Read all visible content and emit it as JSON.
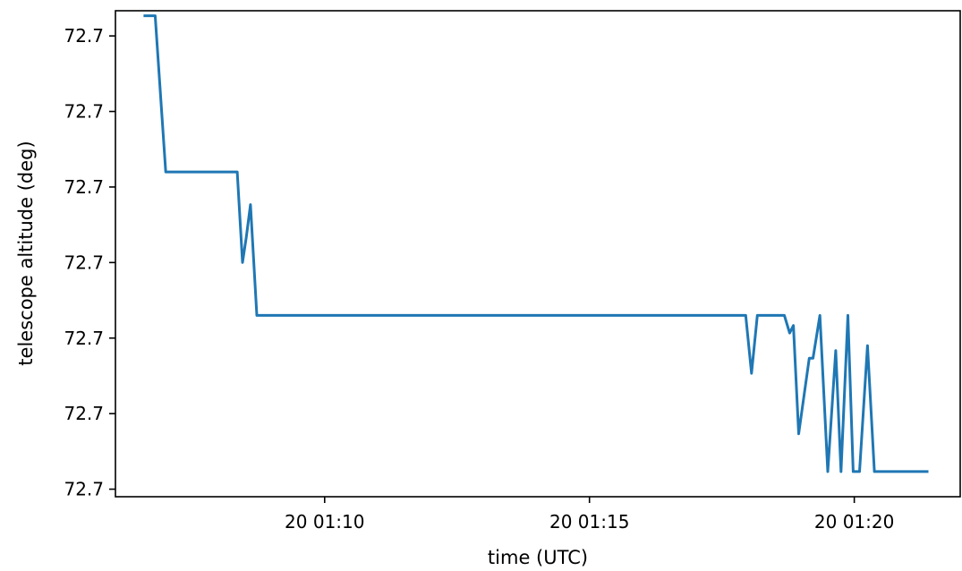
{
  "chart_data": {
    "type": "line",
    "title": "",
    "xlabel": "time (UTC)",
    "ylabel": "telescope altitude (deg)",
    "x_unit": "minutes (UTC)",
    "xlim": [
      6.05,
      22.0
    ],
    "ylim": [
      -0.15,
      9.5
    ],
    "x_ticks": [
      {
        "value": 10,
        "label": "20 01:10"
      },
      {
        "value": 15,
        "label": "20 01:15"
      },
      {
        "value": 20,
        "label": "20 01:20"
      }
    ],
    "y_ticks": [
      {
        "value": 0,
        "label": "72.7"
      },
      {
        "value": 1.5,
        "label": "72.7"
      },
      {
        "value": 3,
        "label": "72.7"
      },
      {
        "value": 4.5,
        "label": "72.7"
      },
      {
        "value": 6,
        "label": "72.7"
      },
      {
        "value": 7.5,
        "label": "72.7"
      },
      {
        "value": 9,
        "label": "72.7"
      }
    ],
    "grid": false,
    "series": [
      {
        "color": "#1f77b4",
        "points": [
          [
            6.58,
            9.4
          ],
          [
            6.8,
            9.4
          ],
          [
            7.0,
            6.3
          ],
          [
            8.35,
            6.3
          ],
          [
            8.45,
            4.5
          ],
          [
            8.52,
            5.0
          ],
          [
            8.6,
            5.65
          ],
          [
            8.72,
            3.45
          ],
          [
            15.0,
            3.45
          ],
          [
            17.95,
            3.45
          ],
          [
            18.06,
            2.3
          ],
          [
            18.17,
            3.45
          ],
          [
            18.68,
            3.45
          ],
          [
            18.78,
            3.1
          ],
          [
            18.85,
            3.25
          ],
          [
            18.95,
            1.1
          ],
          [
            19.15,
            2.6
          ],
          [
            19.22,
            2.6
          ],
          [
            19.35,
            3.45
          ],
          [
            19.5,
            0.35
          ],
          [
            19.65,
            2.75
          ],
          [
            19.75,
            0.35
          ],
          [
            19.88,
            3.45
          ],
          [
            19.98,
            0.35
          ],
          [
            20.1,
            0.35
          ],
          [
            20.25,
            2.85
          ],
          [
            20.38,
            0.35
          ],
          [
            21.4,
            0.35
          ]
        ]
      }
    ]
  }
}
